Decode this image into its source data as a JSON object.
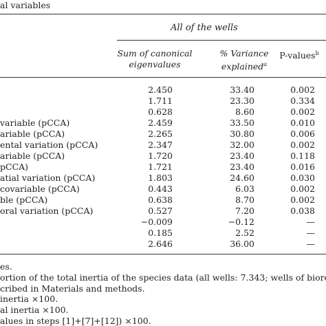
{
  "caption": "al variables",
  "header": {
    "group": "All of the wells",
    "columns": [
      {
        "lines": [
          "Sum of canonical",
          "eigenvalues"
        ]
      },
      {
        "lines": [
          "% Variance",
          "explained"
        ],
        "sup": "a"
      },
      {
        "lines": [
          "P-values"
        ],
        "sup": "b"
      }
    ]
  },
  "table": {
    "rows": [
      [
        "",
        "2.450",
        "33.40",
        "0.002"
      ],
      [
        "",
        "1.711",
        "23.30",
        "0.334"
      ],
      [
        "",
        "0.628",
        "8.60",
        "0.002"
      ],
      [
        "variable (pCCA)",
        "2.459",
        "33.50",
        "0.010"
      ],
      [
        "ariable (pCCA)",
        "2.265",
        "30.80",
        "0.006"
      ],
      [
        "ental variation (pCCA)",
        "2.347",
        "32.00",
        "0.002"
      ],
      [
        "ariable (pCCA)",
        "1.720",
        "23.40",
        "0.118"
      ],
      [
        "pCCA)",
        "1.721",
        "23.40",
        "0.016"
      ],
      [
        "atial variation (pCCA)",
        "1.803",
        "24.60",
        "0.030"
      ],
      [
        "covariable (pCCA)",
        "0.443",
        "6.03",
        "0.002"
      ],
      [
        "ble (pCCA)",
        "0.638",
        "8.70",
        "0.002"
      ],
      [
        "oral variation (pCCA)",
        "0.527",
        "7.20",
        "0.038"
      ],
      [
        "",
        "−0.009",
        "−0.12",
        "—"
      ],
      [
        "",
        "0.185",
        "2.52",
        "—"
      ],
      [
        "",
        "2.646",
        "36.00",
        "—"
      ]
    ]
  },
  "footnotes": [
    "es.",
    "ortion of the total inertia of the species data (all wells: 7.343; wells of biored",
    "cribed in Materials and methods.",
    "inertia  ×100.",
    "al inertia  ×100.",
    "alues in steps [1]+[7]+[12]) ×100."
  ]
}
